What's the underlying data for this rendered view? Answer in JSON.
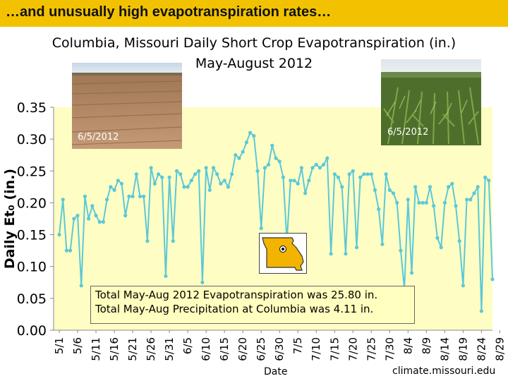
{
  "header": {
    "text": "…and unusually high evapotranspiration rates…"
  },
  "colors": {
    "header_bg": "#f2c200",
    "plot_bg": "#fefec4",
    "series_line": "#5cc8d8",
    "series_marker": "#5cc8d8",
    "note_bg": "#ffffbf",
    "missouri_fill": "#f2b400"
  },
  "photos": [
    {
      "caption": "6/5/2012",
      "depicts": "bare-soil-field"
    },
    {
      "caption": "6/5/2012",
      "depicts": "corn-field"
    }
  ],
  "note": {
    "line1": "Total May-Aug 2012 Evapotranspiration was 25.80 in.",
    "line2": "Total May-Aug Precipitation at Columbia was 4.11 in."
  },
  "footer": {
    "date_label": "Date",
    "source": "climate.missouri.edu"
  },
  "map": {
    "icon": "missouri-state-map-icon"
  },
  "chart_data": {
    "type": "line",
    "title": "Columbia, Missouri Daily Short Crop Evapotranspiration (in.)",
    "subtitle": "May-August 2012",
    "xlabel": "Date",
    "ylabel": "Daily Et₀ (in.)",
    "ylim": [
      0.0,
      0.35
    ],
    "yticks": [
      "0.00",
      "0.05",
      "0.10",
      "0.15",
      "0.20",
      "0.25",
      "0.30",
      "0.35"
    ],
    "grid": false,
    "x_tick_labels": [
      "5/1",
      "5/6",
      "5/11",
      "5/16",
      "5/21",
      "5/26",
      "5/31",
      "6/5",
      "6/10",
      "6/15",
      "6/20",
      "6/25",
      "6/30",
      "7/5",
      "7/10",
      "7/15",
      "7/20",
      "7/25",
      "7/30",
      "8/4",
      "8/9",
      "8/14",
      "8/19",
      "8/24",
      "8/29"
    ],
    "x_start": "2012-05-01",
    "series": [
      {
        "name": "",
        "values": [
          0.15,
          0.205,
          0.125,
          0.125,
          0.175,
          0.18,
          0.07,
          0.21,
          0.175,
          0.195,
          0.18,
          0.17,
          0.17,
          0.205,
          0.225,
          0.22,
          0.235,
          0.23,
          0.18,
          0.21,
          0.21,
          0.245,
          0.21,
          0.21,
          0.14,
          0.255,
          0.23,
          0.245,
          0.24,
          0.085,
          0.24,
          0.14,
          0.25,
          0.245,
          0.225,
          0.225,
          0.235,
          0.245,
          0.25,
          0.075,
          0.255,
          0.22,
          0.255,
          0.245,
          0.23,
          0.235,
          0.225,
          0.245,
          0.275,
          0.27,
          0.28,
          0.295,
          0.31,
          0.305,
          0.25,
          0.16,
          0.255,
          0.26,
          0.29,
          0.27,
          0.265,
          0.24,
          0.14,
          0.235,
          0.235,
          0.23,
          0.255,
          0.215,
          0.235,
          0.255,
          0.26,
          0.255,
          0.26,
          0.27,
          0.12,
          0.245,
          0.24,
          0.225,
          0.12,
          0.245,
          0.25,
          0.13,
          0.24,
          0.245,
          0.245,
          0.245,
          0.22,
          0.19,
          0.135,
          0.245,
          0.22,
          0.215,
          0.2,
          0.125,
          0.065,
          0.205,
          0.09,
          0.225,
          0.2,
          0.2,
          0.2,
          0.225,
          0.195,
          0.145,
          0.13,
          0.2,
          0.225,
          0.23,
          0.195,
          0.14,
          0.07,
          0.205,
          0.205,
          0.215,
          0.225,
          0.03,
          0.24,
          0.235,
          0.08
        ]
      }
    ]
  }
}
